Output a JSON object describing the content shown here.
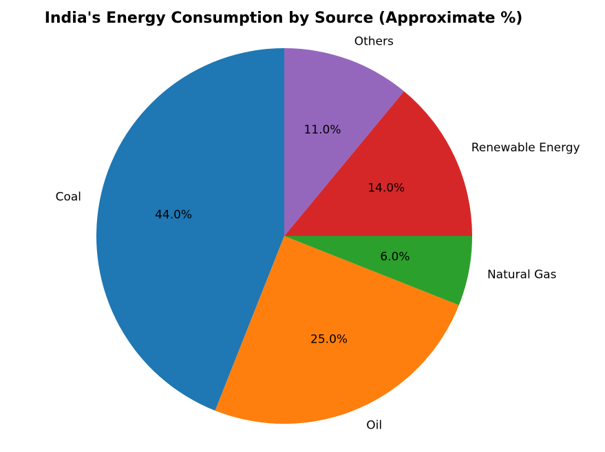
{
  "chart_data": {
    "type": "pie",
    "title": "India's Energy Consumption by Source (Approximate %)",
    "labels": [
      "Coal",
      "Oil",
      "Natural Gas",
      "Renewable Energy",
      "Others"
    ],
    "values": [
      44.0,
      25.0,
      6.0,
      14.0,
      11.0
    ],
    "percent_labels": [
      "44.0%",
      "25.0%",
      "6.0%",
      "14.0%",
      "11.0%"
    ],
    "colors": [
      "#1f77b4",
      "#ff7f0e",
      "#2ca02c",
      "#d62728",
      "#9467bd"
    ],
    "start_angle_deg": 90,
    "direction": "counterclockwise"
  }
}
